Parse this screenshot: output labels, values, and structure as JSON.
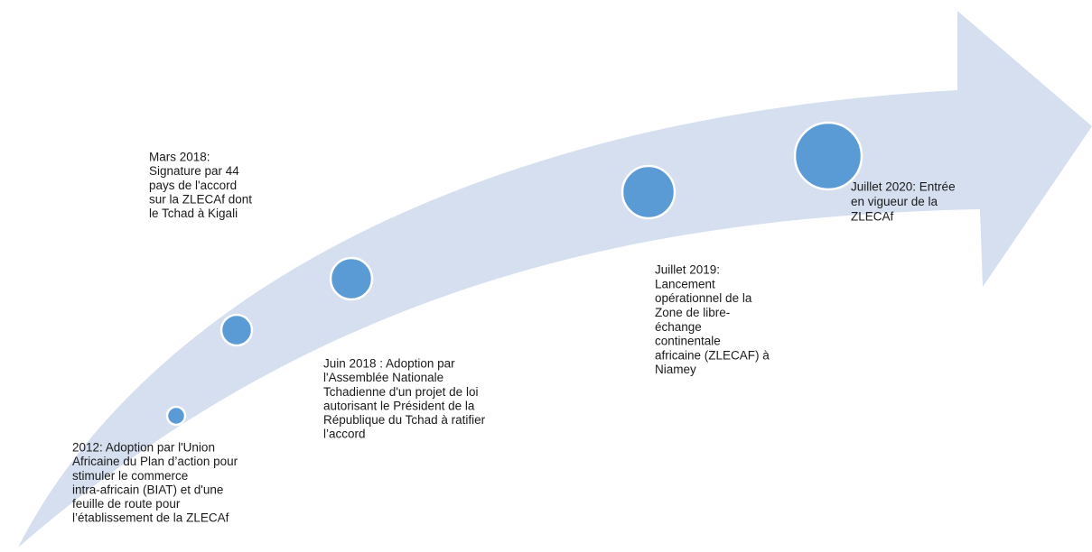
{
  "events": [
    {
      "lines": [
        "2012: Adoption par l'Union",
        "Africaine  du Plan d’action pour",
        "stimuler le commerce",
        "intra-africain (BIAT) et d'une",
        "feuille de route pour",
        "l’établissement de la ZLECAf"
      ]
    },
    {
      "lines": [
        "Mars 2018:",
        "Signature par 44",
        "pays de l'accord",
        "sur la ZLECAf dont",
        "le Tchad à Kigali"
      ]
    },
    {
      "lines": [
        "Juin 2018 : Adoption par",
        "l'Assemblée Nationale",
        "Tchadienne d'un projet de loi",
        "autorisant le Président de la",
        "République du Tchad à ratifier",
        "l’accord"
      ]
    },
    {
      "lines": [
        "Juillet 2019:",
        "Lancement",
        "opérationnel de la",
        "Zone de libre-",
        "échange",
        "continentale",
        "africaine (ZLECAF) à",
        "Niamey"
      ]
    },
    {
      "lines": [
        "Juillet 2020:  Entrée",
        "en vigueur de la",
        "ZLECAf"
      ]
    }
  ]
}
